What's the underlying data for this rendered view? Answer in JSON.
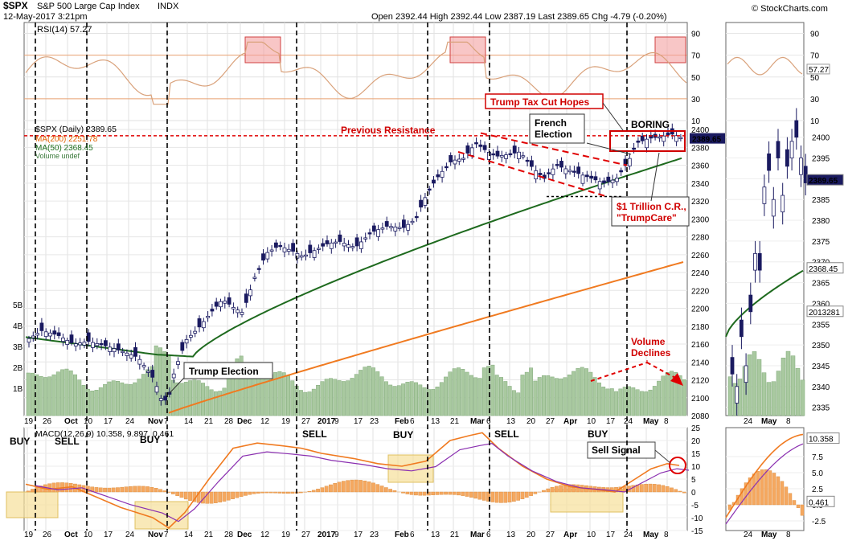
{
  "header": {
    "symbol": "$SPX",
    "name": "S&P 500 Large Cap Index",
    "exchange": "INDX",
    "datetime": "12-May-2017 3:21pm",
    "quote": "Open 2392.44  High 2392.44  Low 2387.19  Last 2389.65  Chg -4.79 (-0.20%)",
    "credit": "© StockCharts.com"
  },
  "legend": {
    "rsi": "RSI(14) 57.27",
    "price": "$SPX (Daily) 2389.65",
    "ma200": "MA(200) 2251.78",
    "ma50": "MA(50) 2368.45",
    "volume": "Volume undef",
    "macd": "MACD(12,26,9) 10.358, 9.897, 0.461"
  },
  "annotations": {
    "resistance": "Previous Resistance",
    "trump_tax": "Trump Tax Cut Hopes",
    "french_1": "French",
    "french_2": "Election",
    "boring": "BORING",
    "cr_1": "$1 Trillion C.R.,",
    "cr_2": "\"TrumpCare\"",
    "election": "Trump Election",
    "volume_1": "Volume",
    "volume_2": "Declines",
    "sell_signal": "Sell Signal",
    "buy": "BUY",
    "sell": "SELL"
  },
  "chart_data": [
    {
      "type": "line",
      "panel": "RSI",
      "ylim": [
        10,
        100
      ],
      "y_ticks": [
        10,
        30,
        50,
        70,
        90
      ],
      "last_value": 57.27,
      "last_label": "57.27"
    },
    {
      "type": "candlestick",
      "panel": "Price",
      "ylim": [
        2080,
        2410
      ],
      "y_ticks": [
        2080,
        2100,
        2120,
        2140,
        2160,
        2180,
        2200,
        2220,
        2240,
        2260,
        2280,
        2300,
        2320,
        2340,
        2360,
        2380,
        2400
      ],
      "x_ticks": [
        "19",
        "26",
        "Oct",
        "10",
        "17",
        "24",
        "Nov",
        "7",
        "14",
        "21",
        "28",
        "Dec",
        "12",
        "19",
        "27",
        "2017",
        "9",
        "17",
        "23",
        "Feb",
        "6",
        "13",
        "21",
        "Mar",
        "6",
        "13",
        "20",
        "27",
        "Apr",
        "10",
        "17",
        "24",
        "May",
        "8"
      ],
      "last_price": 2389.65,
      "last_label": "2389.65",
      "ma200_last": "2251.78",
      "ma50_last": "2368.45",
      "resistance_level": 2393,
      "volume_ticks": [
        "1B",
        "2B",
        "3B",
        "4B",
        "5B"
      ],
      "side_last_labels": [
        "2389.65",
        "2368.45",
        "2013281"
      ],
      "side_ticks": [
        2335,
        2340,
        2345,
        2350,
        2355,
        2360,
        2365,
        2370,
        2375,
        2380,
        2385,
        2390,
        2395,
        2400
      ],
      "side_x_ticks": [
        "24",
        "May",
        "8"
      ]
    },
    {
      "type": "line",
      "panel": "MACD",
      "ylim": [
        -15,
        25
      ],
      "y_ticks": [
        -15,
        -10,
        -5,
        0,
        5,
        10,
        15,
        20,
        25
      ],
      "macd": 10.358,
      "signal": 9.897,
      "histogram": 0.461,
      "side_ticks": [
        "-2.5",
        "0.0",
        "2.5",
        "5.0",
        "7.5"
      ],
      "side_last_labels": [
        "10.358",
        "0.461"
      ]
    }
  ]
}
